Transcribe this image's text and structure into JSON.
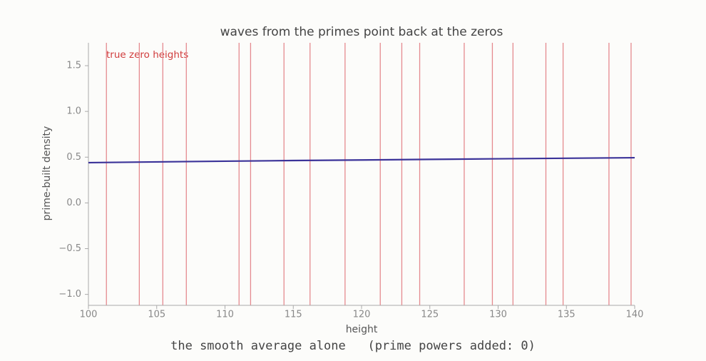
{
  "chart_data": {
    "type": "line",
    "title": "waves from the primes point back at the zeros",
    "xlabel": "height",
    "ylabel": "prime-built density",
    "annotation": "true zero heights",
    "caption": "the smooth average alone   (prime powers added: 0)",
    "x": [
      100,
      105,
      110,
      115,
      120,
      125,
      130,
      135,
      140
    ],
    "series": [
      {
        "name": "prime-built density",
        "color": "#3b3399",
        "values": [
          0.44,
          0.448,
          0.456,
          0.463,
          0.469,
          0.476,
          0.482,
          0.488,
          0.494
        ]
      }
    ],
    "zeros": [
      101.318,
      103.726,
      105.447,
      107.169,
      111.03,
      111.875,
      114.32,
      116.227,
      118.791,
      121.37,
      122.947,
      124.257,
      127.517,
      129.579,
      131.088,
      133.498,
      134.757,
      138.116,
      139.736
    ],
    "zero_color": "#e58a8f",
    "xlim": [
      100,
      140
    ],
    "xticks": [
      100,
      105,
      110,
      115,
      120,
      125,
      130,
      135,
      140
    ],
    "ylim": [
      -1.12,
      1.75
    ],
    "yticks": [
      {
        "value": -1.0,
        "label": "−1.0"
      },
      {
        "value": -0.5,
        "label": "−0.5"
      },
      {
        "value": 0,
        "label": "0.0"
      },
      0.5,
      {
        "value": 1.0,
        "label": "1.0"
      },
      1.5
    ]
  }
}
